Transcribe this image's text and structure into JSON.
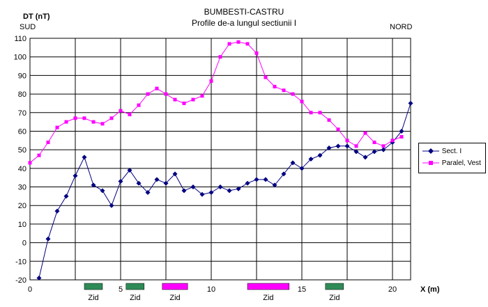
{
  "chart_data": {
    "type": "line",
    "title": "BUMBESTI-CASTRU",
    "subtitle": "Profile de-a lungul sectiunii  I",
    "ylabel": "DT (nT)",
    "xlabel": "X (m)",
    "left_label": "SUD",
    "right_label": "NORD",
    "ylim": [
      -20,
      110
    ],
    "yticks": [
      -20,
      -10,
      0,
      10,
      20,
      30,
      40,
      50,
      60,
      70,
      80,
      90,
      100,
      110
    ],
    "xlim": [
      0,
      21
    ],
    "xticks": [
      0,
      5,
      10,
      15,
      20
    ],
    "grid": "vertical every 2.5 m, horizontal every 10 nT",
    "legend_position": "right",
    "series": [
      {
        "name": "Sect. I",
        "color": "#000080",
        "marker": "diamond",
        "x": [
          0.5,
          1,
          1.5,
          2,
          2.5,
          3,
          3.5,
          4,
          4.5,
          5,
          5.5,
          6,
          6.5,
          7,
          7.5,
          8,
          8.5,
          9,
          9.5,
          10,
          10.5,
          11,
          11.5,
          12,
          12.5,
          13,
          13.5,
          14,
          14.5,
          15,
          15.5,
          16,
          16.5,
          17,
          17.5,
          18,
          18.5,
          19,
          19.5,
          20,
          20.5,
          21
        ],
        "values": [
          -19,
          2,
          17,
          25,
          36,
          46,
          31,
          28,
          20,
          33,
          39,
          32,
          27,
          34,
          32,
          37,
          28,
          30,
          26,
          27,
          30,
          28,
          29,
          32,
          34,
          34,
          31,
          37,
          43,
          40,
          45,
          47,
          51,
          52,
          52,
          49,
          46,
          49,
          50,
          54,
          60,
          75
        ]
      },
      {
        "name": "Paralel, Vest",
        "color": "#ff00ff",
        "marker": "square",
        "x": [
          0,
          0.5,
          1,
          1.5,
          2,
          2.5,
          3,
          3.5,
          4,
          4.5,
          5,
          5.5,
          6,
          6.5,
          7,
          7.5,
          8,
          8.5,
          9,
          9.5,
          10,
          10.5,
          11,
          11.5,
          12,
          12.5,
          13,
          13.5,
          14,
          14.5,
          15,
          15.5,
          16,
          16.5,
          17,
          17.5,
          18,
          18.5,
          19,
          19.5,
          20,
          20.5
        ],
        "values": [
          43,
          47,
          54,
          62,
          65,
          67,
          67,
          65,
          64,
          67,
          71,
          69,
          74,
          80,
          83,
          80,
          77,
          75,
          77,
          79,
          87,
          100,
          107,
          108,
          107,
          102,
          89,
          84,
          82,
          80,
          76,
          70,
          70,
          66,
          61,
          55,
          52,
          59,
          54,
          52,
          55,
          57
        ]
      }
    ],
    "annotations": [
      {
        "label": "Zid",
        "from": 3,
        "to": 4,
        "color": "#2e8b57"
      },
      {
        "label": "Zid",
        "from": 5.3,
        "to": 6.3,
        "color": "#2e8b57"
      },
      {
        "label": "Zid",
        "from": 7.3,
        "to": 8.7,
        "color": "#ff00ff"
      },
      {
        "label": "Zid",
        "from": 12,
        "to": 14.3,
        "color": "#ff00ff"
      },
      {
        "label": "Zid",
        "from": 16.3,
        "to": 17.3,
        "color": "#2e8b57"
      }
    ]
  }
}
